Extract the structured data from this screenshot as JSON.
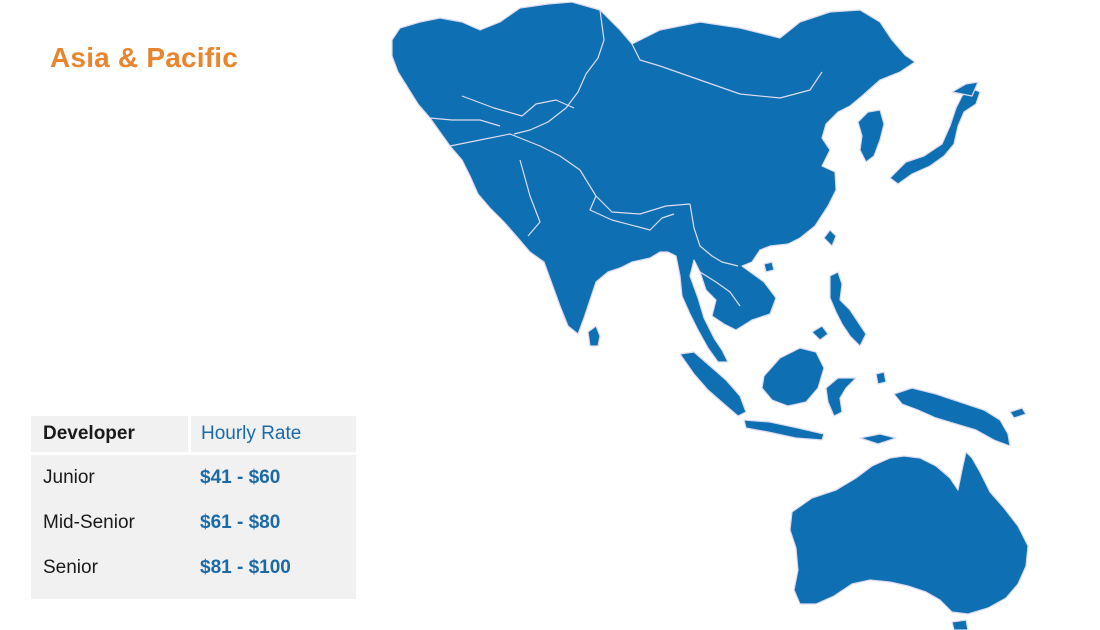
{
  "title": "Asia & Pacific",
  "table": {
    "headers": {
      "developer": "Developer",
      "rate": "Hourly Rate"
    },
    "rows": [
      {
        "level": "Junior",
        "rate": "$41 - $60"
      },
      {
        "level": "Mid-Senior",
        "rate": "$61 - $80"
      },
      {
        "level": "Senior",
        "rate": "$81 - $100"
      }
    ]
  },
  "colors": {
    "title": "#E8852E",
    "land": "#0f6fb3",
    "border": "#dcdcf0",
    "rate_text": "#1a6aa8",
    "table_bg": "#f1f1f1"
  },
  "map": {
    "region": "Asia & Pacific",
    "icons": [
      "asia-mainland-shape",
      "japan-shape",
      "korea-shape",
      "philippines-shape",
      "indonesia-shape",
      "papua-shape",
      "australia-shape",
      "sri-lanka-shape",
      "taiwan-shape"
    ]
  }
}
